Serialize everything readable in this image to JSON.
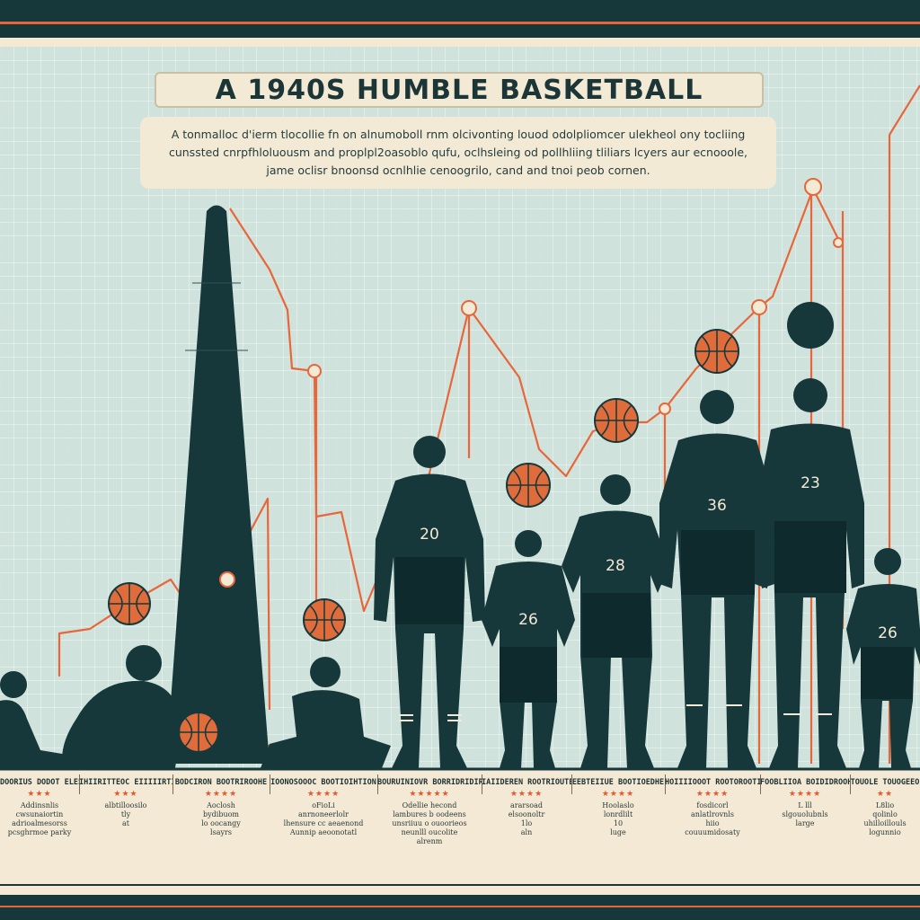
{
  "title": "A 1940S HUMBLE BASKETBALL",
  "subtitle": "A tonmalloc d'ierm tlocollie fn on alnumoboll rnm olcivonting louod odolpliomcer ulekheol ony tocliing cunssted cnrpfhloluousm and proplpl2oasoblo qufu, oclhsleing od pollhliing tliliars lcyers aur ecnooole, jame oclisr bnoonsd ocnlhlie cenoogrilo, cand and tnoi peob cornen.",
  "jersey_numbers": [
    "20",
    "26",
    "28",
    "36",
    "23",
    "26"
  ],
  "labels": [
    {
      "head": "DOORIUS\nDODOT ELES",
      "stars": "★★★",
      "desc": "Addinsnlis\ncwsunaiortin\nadrioalmesorss\npcsghrmoe parky"
    },
    {
      "head": "IHIIRITTEOC\nEIIIIIRTIEIS",
      "stars": "★★★",
      "desc": "albtilloosilo\ntly\nat"
    },
    {
      "head": "BODCIRON\nBOOTRIROOHE",
      "stars": "★★★★",
      "desc": "Aoclosh\nbydibuom\nlo oocangy\nlsayrs"
    },
    {
      "head": "IOONOSOOOC\nBOOTIOIHTION",
      "stars": "★★★★",
      "desc": "oFioLi\nanrnoneerlolr\nlhensure cc aeaenond\nAunnip aeoonotatl"
    },
    {
      "head": "BOURUINIOVR\nBORRIDRIDIRS",
      "stars": "★★★★★",
      "desc": "Odellie hecond\nlambures b oodeens\nunsriiuu o ouoorieos\nneunlll oucolite\nalrenm"
    },
    {
      "head": "IAIIDEREN\nROOTRIOUTER",
      "stars": "★★★★",
      "desc": "ararsoad\nelsoonoltr\n1lo\naln"
    },
    {
      "head": "EEBTEIIUE\nBOOTIOEDHE",
      "stars": "★★★★",
      "desc": "Hoolaslo\nlonrdlilt\n10\nluge"
    },
    {
      "head": "HOIIIIOOOT\nROOTOROOTIS",
      "stars": "★★★★",
      "desc": "fosdicorl\nanlatlrovnls\nhiio\ncouuumidosaty"
    },
    {
      "head": "FOOBLIIOA\nBOIDIDROOHE",
      "stars": "★★★★",
      "desc": "L lll\nslgouolubnls\nlarge"
    },
    {
      "head": "TOUOLE\nTOUOGEEO",
      "stars": "★★",
      "desc": "L8lio\nqolinlo\nuhilloillouls\nlogunnio"
    }
  ],
  "colors": {
    "navy": "#16383a",
    "accent": "#e8663a",
    "ball": "#e16c3b",
    "panel": "#cfe3dc",
    "paper": "#f3e9d4"
  }
}
